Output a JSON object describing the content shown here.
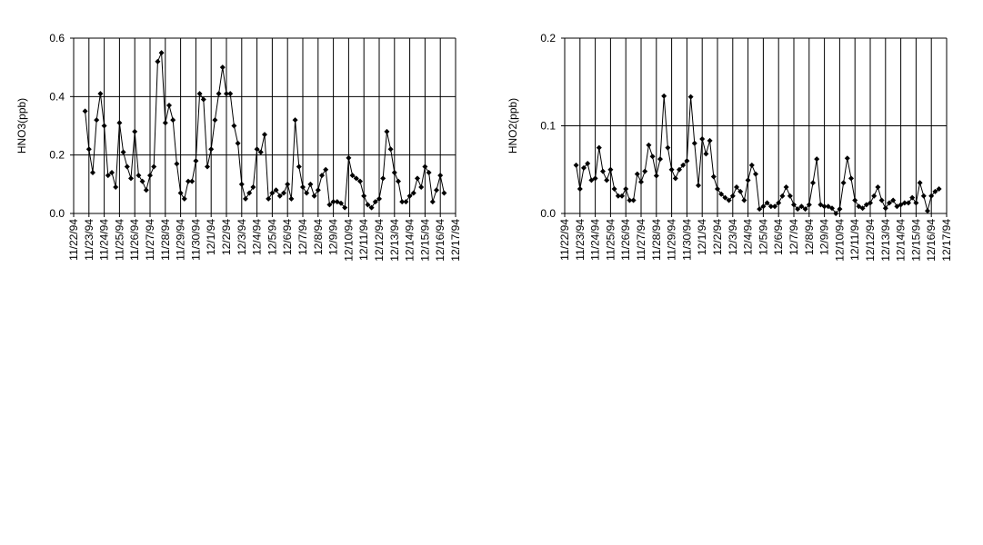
{
  "chart_data": [
    {
      "type": "line",
      "y_label": "HNO3(ppb)",
      "categories": [
        "11/22/94",
        null,
        null,
        null,
        "11/23/94",
        null,
        null,
        null,
        "11/24/94",
        null,
        null,
        null,
        "11/25/94",
        null,
        null,
        null,
        "11/26/94",
        null,
        null,
        null,
        "11/27/94",
        null,
        null,
        null,
        "11/28/94",
        null,
        null,
        null,
        "11/29/94",
        null,
        null,
        null,
        "11/30/94",
        null,
        null,
        null,
        "12/1/94",
        null,
        null,
        null,
        "12/2/94",
        null,
        null,
        null,
        "12/3/94",
        null,
        null,
        null,
        "12/4/94",
        null,
        null,
        null,
        "12/5/94",
        null,
        null,
        null,
        "12/6/94",
        null,
        null,
        null,
        "12/7/94",
        null,
        null,
        null,
        "12/8/94",
        null,
        null,
        null,
        "12/9/94",
        null,
        null,
        null,
        "12/10/94",
        null,
        null,
        null,
        "12/11/94",
        null,
        null,
        null,
        "12/12/94",
        null,
        null,
        null,
        "12/13/94",
        null,
        null,
        null,
        "12/14/94",
        null,
        null,
        null,
        "12/15/94",
        null,
        null,
        null,
        "12/16/94",
        null,
        null,
        null,
        "12/17/94"
      ],
      "series": [
        {
          "color": "#000000",
          "values": [
            null,
            null,
            null,
            0.35,
            0.22,
            0.14,
            0.32,
            0.41,
            0.3,
            0.13,
            0.14,
            0.09,
            0.31,
            0.21,
            0.16,
            0.12,
            0.28,
            0.13,
            0.11,
            0.08,
            0.13,
            0.16,
            0.52,
            0.55,
            0.31,
            0.37,
            0.32,
            0.17,
            0.07,
            0.05,
            0.11,
            0.11,
            0.18,
            0.41,
            0.39,
            0.16,
            0.22,
            0.32,
            0.41,
            0.5,
            0.41,
            0.41,
            0.3,
            0.24,
            0.1,
            0.05,
            0.07,
            0.09,
            0.22,
            0.21,
            0.27,
            0.05,
            0.07,
            0.08,
            0.06,
            0.07,
            0.1,
            0.05,
            0.32,
            0.16,
            0.09,
            0.07,
            0.1,
            0.06,
            0.08,
            0.13,
            0.15,
            0.03,
            0.04,
            0.04,
            0.035,
            0.02,
            0.19,
            0.13,
            0.12,
            0.11,
            0.06,
            0.03,
            0.02,
            0.04,
            0.05,
            0.12,
            0.28,
            0.22,
            0.14,
            0.11,
            0.04,
            0.04,
            0.06,
            0.07,
            0.12,
            0.09,
            0.16,
            0.14,
            0.04,
            0.08,
            0.13,
            0.07,
            null,
            null,
            null
          ]
        }
      ],
      "ylim": [
        0,
        0.6
      ],
      "yticks": [
        {
          "value": 0,
          "label": "0.0"
        },
        0.2,
        0.4,
        0.6
      ],
      "grid": true
    },
    {
      "type": "line",
      "y_label": "HNO2(ppb)",
      "categories": [
        "11/22/94",
        null,
        null,
        null,
        "11/23/94",
        null,
        null,
        null,
        "11/24/94",
        null,
        null,
        null,
        "11/25/94",
        null,
        null,
        null,
        "11/26/94",
        null,
        null,
        null,
        "11/27/94",
        null,
        null,
        null,
        "11/28/94",
        null,
        null,
        null,
        "11/29/94",
        null,
        null,
        null,
        "11/30/94",
        null,
        null,
        null,
        "12/1/94",
        null,
        null,
        null,
        "12/2/94",
        null,
        null,
        null,
        "12/3/94",
        null,
        null,
        null,
        "12/4/94",
        null,
        null,
        null,
        "12/5/94",
        null,
        null,
        null,
        "12/6/94",
        null,
        null,
        null,
        "12/7/94",
        null,
        null,
        null,
        "12/8/94",
        null,
        null,
        null,
        "12/9/94",
        null,
        null,
        null,
        "12/10/94",
        null,
        null,
        null,
        "12/11/94",
        null,
        null,
        null,
        "12/12/94",
        null,
        null,
        null,
        "12/13/94",
        null,
        null,
        null,
        "12/14/94",
        null,
        null,
        null,
        "12/15/94",
        null,
        null,
        null,
        "12/16/94",
        null,
        null,
        null,
        "12/17/94"
      ],
      "series": [
        {
          "color": "#000000",
          "values": [
            null,
            null,
            null,
            0.055,
            0.028,
            0.052,
            0.057,
            0.038,
            0.04,
            0.075,
            0.048,
            0.038,
            0.05,
            0.028,
            0.02,
            0.02,
            0.028,
            0.015,
            0.015,
            0.045,
            0.036,
            0.048,
            0.078,
            0.065,
            0.043,
            0.062,
            0.134,
            0.075,
            0.05,
            0.04,
            0.05,
            0.055,
            0.06,
            0.133,
            0.08,
            0.032,
            0.085,
            0.068,
            0.083,
            0.042,
            0.028,
            0.022,
            0.018,
            0.015,
            0.02,
            0.03,
            0.025,
            0.015,
            0.038,
            0.055,
            0.045,
            0.005,
            0.008,
            0.012,
            0.008,
            0.008,
            0.012,
            0.02,
            0.03,
            0.02,
            0.01,
            0.005,
            0.008,
            0.005,
            0.01,
            0.035,
            0.062,
            0.01,
            0.008,
            0.008,
            0.006,
            0,
            0.005,
            0.035,
            0.063,
            0.04,
            0.015,
            0.008,
            0.006,
            0.01,
            0.012,
            0.02,
            0.03,
            0.015,
            0.006,
            0.012,
            0.015,
            0.008,
            0.01,
            0.012,
            0.012,
            0.018,
            0.012,
            0.035,
            0.02,
            0.003,
            0.02,
            0.025,
            0.028,
            null,
            null
          ]
        }
      ],
      "ylim": [
        0,
        0.2
      ],
      "yticks": [
        {
          "value": 0,
          "label": "0.0"
        },
        0.1,
        0.2
      ],
      "grid": true
    }
  ]
}
